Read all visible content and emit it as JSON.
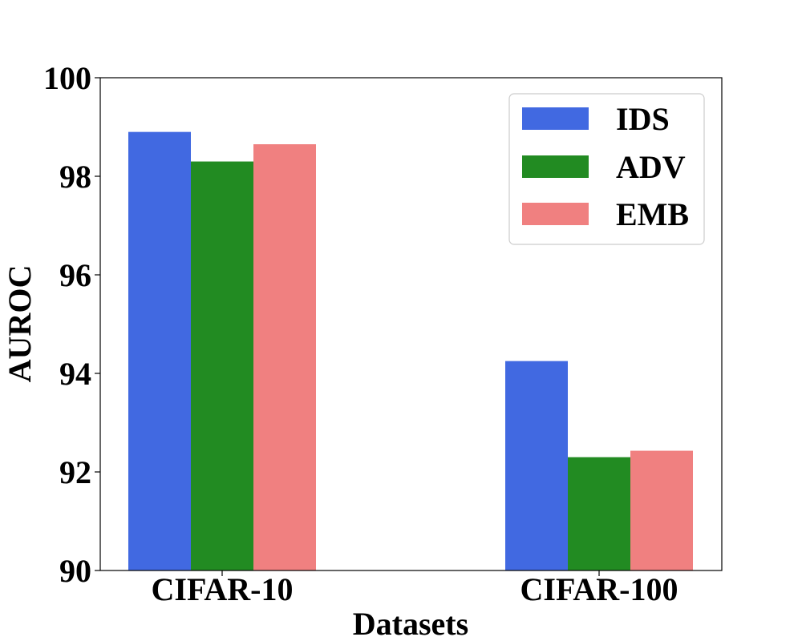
{
  "chart_data": {
    "type": "bar",
    "title": "",
    "xlabel": "Datasets",
    "ylabel": "AUROC",
    "categories": [
      "CIFAR-10",
      "CIFAR-100"
    ],
    "series": [
      {
        "name": "IDS",
        "values": [
          98.9,
          94.25
        ],
        "color": "#4169e1"
      },
      {
        "name": "ADV",
        "values": [
          98.3,
          92.3
        ],
        "color": "#228b22"
      },
      {
        "name": "EMB",
        "values": [
          98.65,
          92.43
        ],
        "color": "#f08080"
      }
    ],
    "ylim": [
      90,
      100
    ],
    "yticks": [
      90,
      92,
      94,
      96,
      98,
      100
    ],
    "ytick_labels": [
      "90",
      "92",
      "94",
      "96",
      "98",
      "100"
    ],
    "grid": false,
    "legend_position": "top-right"
  }
}
